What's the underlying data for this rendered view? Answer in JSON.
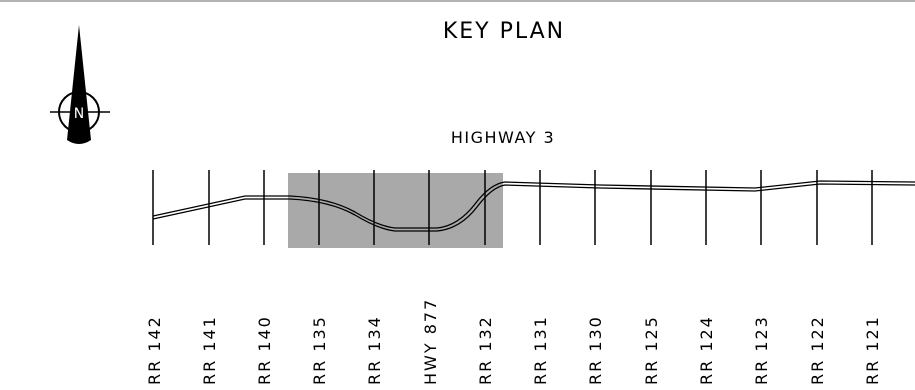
{
  "title": "KEY PLAN",
  "highway_label": "HIGHWAY 3",
  "north_arrow": {
    "icon": "north-arrow-icon",
    "letter": "N"
  },
  "highlight_color": "#a9a9a9",
  "cross_roads": [
    "RR 142",
    "RR 141",
    "RR 140",
    "RR 135",
    "RR 134",
    "HWY 877",
    "RR 132",
    "RR 131",
    "RR 130",
    "RR 125",
    "RR 124",
    "RR 123",
    "RR 122",
    "RR 121"
  ]
}
